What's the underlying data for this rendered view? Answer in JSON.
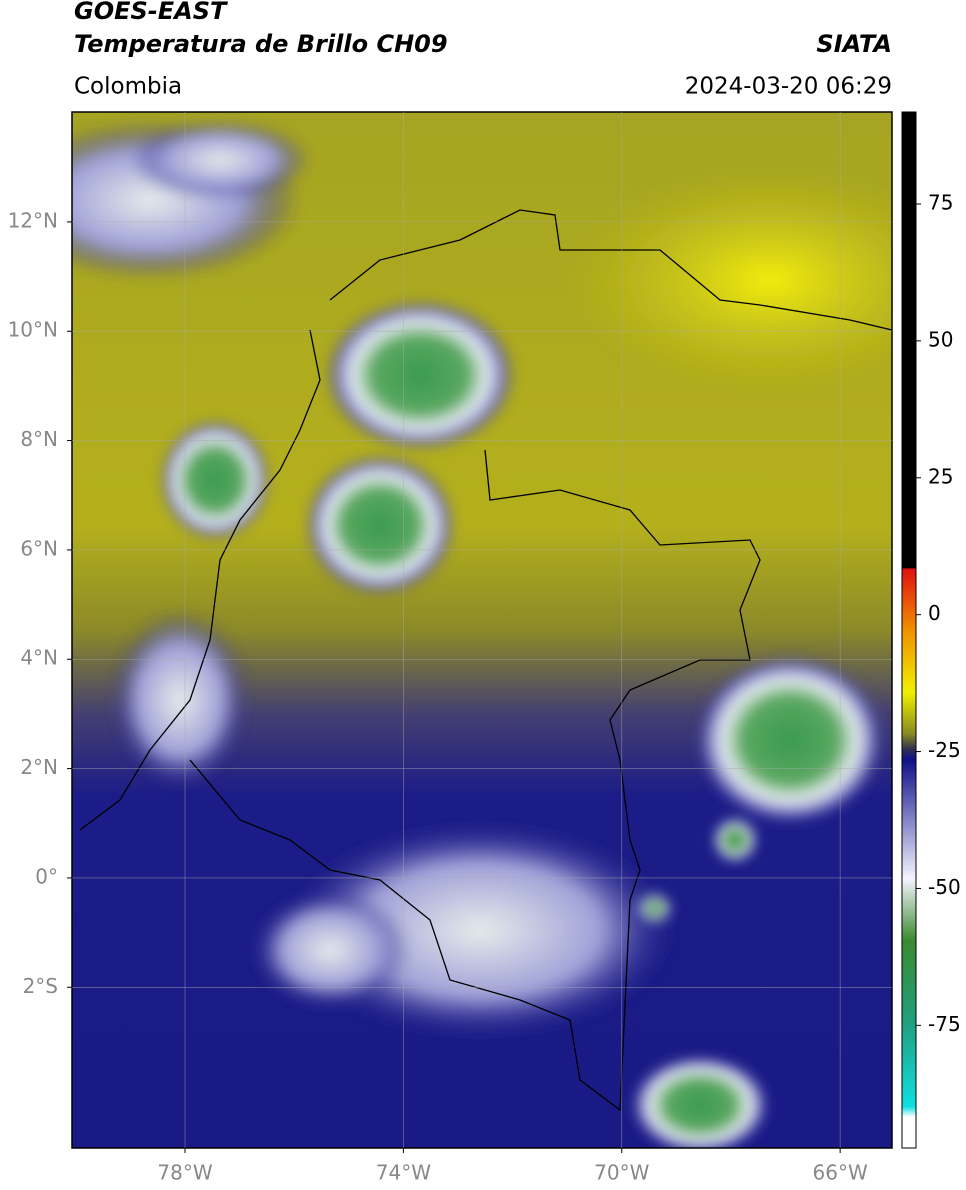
{
  "header": {
    "title": "GOES-EAST",
    "subtitle": "Temperatura de Brillo CH09",
    "region": "Colombia",
    "source": "SIATA",
    "datetime": "2024-03-20 06:29"
  },
  "map": {
    "lonlim": [
      -80.07,
      -65.05
    ],
    "latlim": [
      -4.94,
      14.01
    ],
    "lonticks": [
      {
        "value": -78,
        "label": "78°W"
      },
      {
        "value": -74,
        "label": "74°W"
      },
      {
        "value": -70,
        "label": "70°W"
      },
      {
        "value": -66,
        "label": "66°W"
      }
    ],
    "latticks": [
      {
        "value": 12,
        "label": "12°N"
      },
      {
        "value": 10,
        "label": "10°N"
      },
      {
        "value": 8,
        "label": "8°N"
      },
      {
        "value": 6,
        "label": "6°N"
      },
      {
        "value": 4,
        "label": "4°N"
      },
      {
        "value": 2,
        "label": "2°N"
      },
      {
        "value": 0,
        "label": "0°"
      },
      {
        "value": -2,
        "label": "2°S"
      }
    ],
    "grid": true
  },
  "colorbar": {
    "lim": [
      -97.4,
      91.8
    ],
    "ticks": [
      -75,
      -50,
      -25,
      0,
      25,
      50,
      75
    ]
  }
}
